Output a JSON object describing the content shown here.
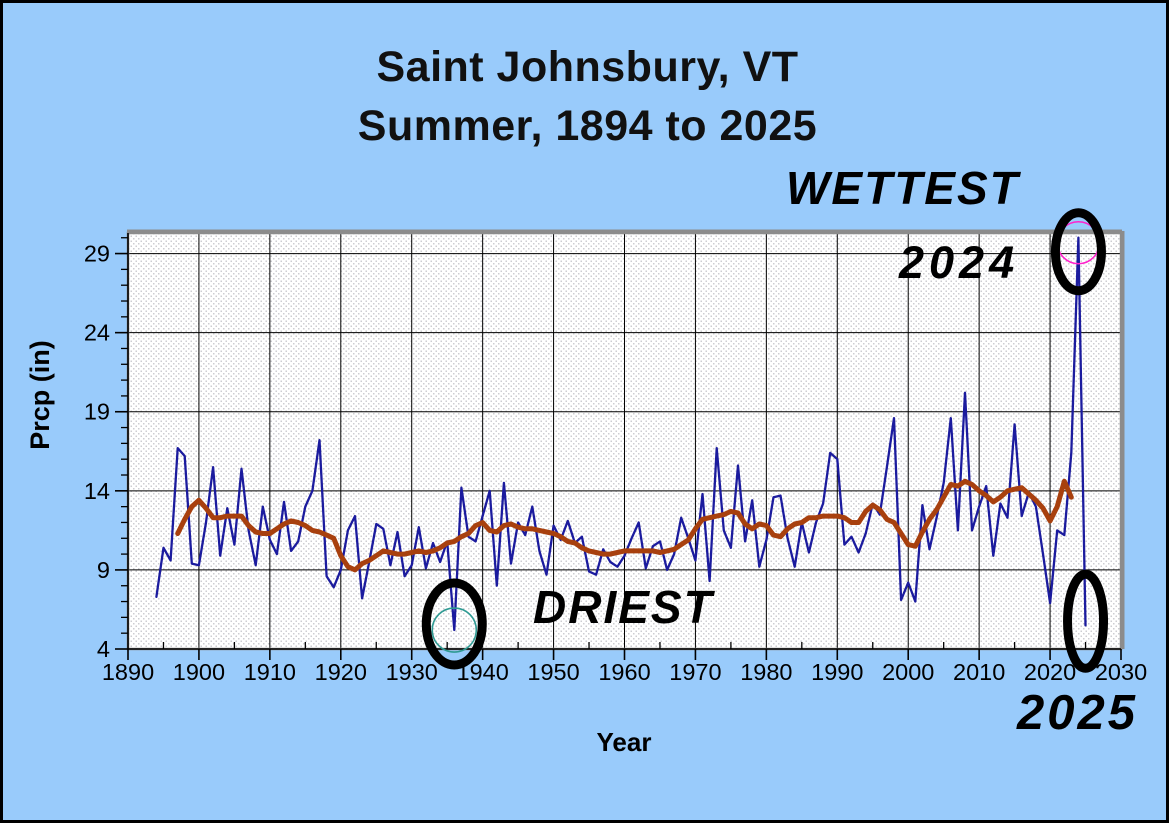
{
  "title": {
    "line1": "Saint Johnsbury, VT",
    "line2": "Summer, 1894 to 2025"
  },
  "axes": {
    "y_title": "Prcp (in)",
    "x_title": "Year"
  },
  "annotations": {
    "wettest_label": "WETTEST",
    "wettest_year": "2024",
    "driest_label": "DRIEST",
    "latest_year": "2025"
  },
  "colors": {
    "background": "#99CBFB",
    "annual_line": "#1B1B9E",
    "smoothed_line": "#A8400E",
    "wettest_ring": "#FF22CC",
    "driest_ring": "#2F9A93",
    "grid": "#000000",
    "frame": "#8C8C8C",
    "pattern_dot": "#CDCDD2"
  },
  "chart_data": {
    "type": "line",
    "title": "Saint Johnsbury, VT — Summer, 1894 to 2025",
    "xlabel": "Year",
    "ylabel": "Prcp (in)",
    "xlim": [
      1890,
      2030
    ],
    "ylim": [
      4,
      30.3
    ],
    "x_major_ticks": [
      1890,
      1900,
      1910,
      1920,
      1930,
      1940,
      1950,
      1960,
      1970,
      1980,
      1990,
      2000,
      2010,
      2020,
      2030
    ],
    "x_minor_step": 5,
    "y_major_ticks": [
      4,
      9,
      14,
      19,
      24,
      29
    ],
    "y_minor_step": 1,
    "grid": true,
    "legend": "none",
    "series": [
      {
        "name": "annual-precip",
        "color": "#1B1B9E",
        "width": 2.3,
        "start_year": 1894,
        "values": [
          7.3,
          10.4,
          9.6,
          16.7,
          16.2,
          9.4,
          9.3,
          12,
          15.5,
          9.9,
          12.9,
          10.6,
          15.4,
          11.5,
          9.3,
          13,
          10.9,
          10,
          13.3,
          10.2,
          10.8,
          13,
          14,
          17.2,
          8.6,
          7.9,
          9,
          11.5,
          12.4,
          7.2,
          9.5,
          11.9,
          11.6,
          9.3,
          11.4,
          8.6,
          9.3,
          11.7,
          9.1,
          10.7,
          9.5,
          10.8,
          5.2,
          14.2,
          11.1,
          10.8,
          12.4,
          14,
          8,
          14.5,
          9.4,
          12,
          11.2,
          13,
          10.2,
          8.7,
          11.8,
          10.9,
          12.1,
          10.7,
          11.1,
          8.9,
          8.7,
          10.3,
          9.5,
          9.2,
          9.9,
          11,
          12,
          9.1,
          10.5,
          10.8,
          9,
          10,
          12.3,
          11,
          9.6,
          13.8,
          8.3,
          16.7,
          11.5,
          10.4,
          15.6,
          10.8,
          13.4,
          9.2,
          10.9,
          13.6,
          13.7,
          11,
          9.2,
          12,
          10.1,
          12,
          13.2,
          16.4,
          16,
          10.6,
          11.1,
          10.1,
          11.3,
          13.2,
          12.5,
          15.5,
          18.6,
          7.1,
          8.2,
          7,
          13.1,
          10.3,
          12.3,
          14.5,
          18.6,
          11.5,
          20.2,
          11.5,
          13,
          14.3,
          9.9,
          13.2,
          12.3,
          18.2,
          12.4,
          13.9,
          13,
          10,
          6.9,
          11.5,
          11.2,
          16.4,
          30,
          5.5
        ]
      },
      {
        "name": "smoothed-average",
        "color": "#A8400E",
        "width": 5,
        "start_year": 1897,
        "values": [
          11.3,
          12.2,
          13,
          13.4,
          12.9,
          12.3,
          12.3,
          12.4,
          12.4,
          12.4,
          11.8,
          11.4,
          11.3,
          11.3,
          11.6,
          11.9,
          12.1,
          12,
          11.8,
          11.5,
          11.4,
          11.2,
          11,
          9.9,
          9.2,
          9,
          9.4,
          9.6,
          9.9,
          10.2,
          10.1,
          10,
          10,
          10.1,
          10.2,
          10.1,
          10.2,
          10.4,
          10.7,
          10.8,
          11.1,
          11.3,
          11.8,
          12,
          11.5,
          11.4,
          11.8,
          11.9,
          11.7,
          11.6,
          11.6,
          11.5,
          11.4,
          11.3,
          11.1,
          10.8,
          10.7,
          10.4,
          10.2,
          10.1,
          10,
          10,
          10.1,
          10.2,
          10.2,
          10.2,
          10.2,
          10.2,
          10.1,
          10.2,
          10.3,
          10.6,
          10.9,
          11.6,
          12.2,
          12.3,
          12.4,
          12.5,
          12.7,
          12.6,
          11.9,
          11.6,
          11.9,
          11.8,
          11.2,
          11.1,
          11.6,
          11.9,
          12,
          12.3,
          12.3,
          12.4,
          12.4,
          12.4,
          12.3,
          12,
          12,
          12.7,
          13.1,
          12.8,
          12.2,
          12,
          11.3,
          10.6,
          10.5,
          11.4,
          12.2,
          12.8,
          13.6,
          14.4,
          14.3,
          14.6,
          14.4,
          14,
          13.7,
          13.3,
          13.6,
          14,
          14.1,
          14.2,
          13.8,
          13.4,
          12.9,
          12.1,
          13,
          14.6,
          13.6
        ]
      }
    ],
    "highlights": [
      {
        "id": "wettest",
        "year": 2024,
        "value": 30.0,
        "ring_color": "#FF22CC"
      },
      {
        "id": "driest",
        "year": 1936,
        "value": 5.2,
        "ring_color": "#2F9A93"
      },
      {
        "id": "latest",
        "year": 2025,
        "value": 5.5,
        "ring_color": null
      }
    ]
  }
}
